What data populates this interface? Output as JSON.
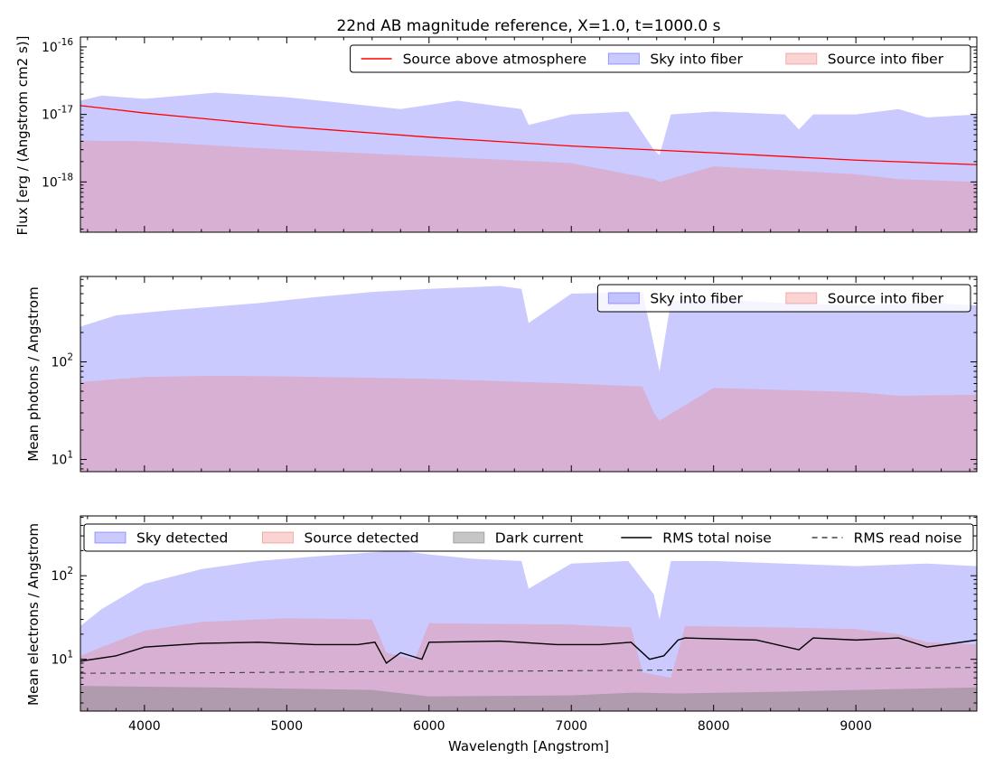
{
  "colors": {
    "sky": "#6666ff",
    "source": "#f08080",
    "dark": "#808080",
    "source_line": "#ff0000",
    "noise_total": "#000000",
    "noise_read": "#404040"
  },
  "chart_data": [
    {
      "type": "area",
      "panel": "top",
      "title": "22nd AB magnitude reference, X=1.0, t=1000.0 s",
      "xlabel": "",
      "ylabel": "Flux [erg / (Angstrom cm2 s)]",
      "xlim": [
        3550,
        9850
      ],
      "ylim": [
        1.8e-19,
        1.4e-16
      ],
      "yscale": "log",
      "yticks": [
        {
          "base": "10",
          "exp": "-18",
          "value": 1e-18
        },
        {
          "base": "10",
          "exp": "-17",
          "value": 1e-17
        },
        {
          "base": "10",
          "exp": "-16",
          "value": 1e-16
        }
      ],
      "legend_position": "top-right",
      "legend": [
        "Source above atmosphere",
        "Sky into fiber",
        "Source into fiber"
      ],
      "series": [
        {
          "name": "Source above atmosphere",
          "kind": "line",
          "x": [
            3550,
            4000,
            5000,
            6000,
            7000,
            8000,
            9000,
            9850
          ],
          "y": [
            1.35e-17,
            1.05e-17,
            6.6e-18,
            4.6e-18,
            3.4e-18,
            2.7e-18,
            2.1e-18,
            1.8e-18
          ]
        },
        {
          "name": "Sky into fiber",
          "kind": "fill",
          "x": [
            3550,
            3700,
            4000,
            4500,
            5000,
            5500,
            5800,
            6200,
            6650,
            6700,
            7000,
            7400,
            7580,
            7620,
            7700,
            8000,
            8500,
            8600,
            8700,
            9000,
            9300,
            9500,
            9850
          ],
          "y": [
            1.6e-17,
            1.9e-17,
            1.7e-17,
            2.1e-17,
            1.8e-17,
            1.4e-17,
            1.2e-17,
            1.6e-17,
            1.2e-17,
            7e-18,
            1e-17,
            1.1e-17,
            3e-18,
            2.5e-18,
            1e-17,
            1.1e-17,
            1e-17,
            6e-18,
            1e-17,
            1e-17,
            1.2e-17,
            9e-18,
            1e-17
          ]
        },
        {
          "name": "Source into fiber",
          "kind": "fill",
          "x": [
            3550,
            4000,
            5000,
            6000,
            7000,
            7580,
            7620,
            8000,
            9000,
            9300,
            9850
          ],
          "y": [
            4.1e-18,
            4e-18,
            3e-18,
            2.4e-18,
            1.9e-18,
            1.1e-18,
            1e-18,
            1.7e-18,
            1.3e-18,
            1.1e-18,
            1e-18
          ]
        }
      ]
    },
    {
      "type": "area",
      "panel": "middle",
      "xlabel": "",
      "ylabel": "Mean photons / Angstrom",
      "xlim": [
        3550,
        9850
      ],
      "ylim": [
        7.5,
        750
      ],
      "yscale": "log",
      "yticks": [
        {
          "base": "10",
          "exp": "1",
          "value": 10
        },
        {
          "base": "10",
          "exp": "2",
          "value": 100
        }
      ],
      "legend_position": "top-right",
      "legend": [
        "Sky into fiber",
        "Source into fiber"
      ],
      "series": [
        {
          "name": "Sky into fiber",
          "kind": "fill",
          "x": [
            3550,
            3800,
            4200,
            4800,
            5200,
            5600,
            6000,
            6500,
            6650,
            6700,
            7000,
            7500,
            7580,
            7620,
            7700,
            8000,
            8500,
            9000,
            9500,
            9850
          ],
          "y": [
            230,
            300,
            340,
            400,
            460,
            520,
            560,
            600,
            560,
            250,
            500,
            520,
            150,
            80,
            420,
            440,
            400,
            380,
            400,
            380
          ]
        },
        {
          "name": "Source into fiber",
          "kind": "fill",
          "x": [
            3550,
            4000,
            4500,
            5000,
            6000,
            7000,
            7500,
            7580,
            7620,
            8000,
            9000,
            9300,
            9850
          ],
          "y": [
            62,
            70,
            72,
            71,
            67,
            60,
            56,
            30,
            25,
            54,
            49,
            45,
            46
          ]
        }
      ]
    },
    {
      "type": "area",
      "panel": "bottom",
      "xlabel": "Wavelength [Angstrom]",
      "ylabel": "Mean electrons / Angstrom",
      "xlim": [
        3550,
        9850
      ],
      "ylim": [
        2.4,
        520
      ],
      "yscale": "log",
      "xticks": [
        "4000",
        "5000",
        "6000",
        "7000",
        "8000",
        "9000"
      ],
      "yticks": [
        {
          "base": "10",
          "exp": "1",
          "value": 10
        },
        {
          "base": "10",
          "exp": "2",
          "value": 100
        }
      ],
      "legend_position": "top",
      "legend": [
        "Sky detected",
        "Source detected",
        "Dark current",
        "RMS total noise",
        "RMS read noise"
      ],
      "series": [
        {
          "name": "Sky detected",
          "kind": "fill",
          "x": [
            3550,
            3700,
            4000,
            4400,
            4800,
            5200,
            5600,
            5800,
            6000,
            6300,
            6650,
            6700,
            7000,
            7400,
            7580,
            7620,
            7700,
            8000,
            8500,
            9000,
            9500,
            9850
          ],
          "y": [
            25,
            40,
            80,
            120,
            150,
            170,
            190,
            200,
            180,
            160,
            150,
            70,
            140,
            150,
            60,
            30,
            150,
            150,
            140,
            130,
            140,
            130
          ]
        },
        {
          "name": "Source detected",
          "kind": "fill",
          "x": [
            3550,
            3700,
            4000,
            4400,
            5000,
            5600,
            5700,
            5900,
            6000,
            7000,
            7420,
            7500,
            7700,
            7800,
            8500,
            9000,
            9300,
            9500,
            9850
          ],
          "y": [
            11,
            14,
            22,
            28,
            31,
            30,
            12,
            10,
            27,
            26,
            24,
            7,
            6,
            25,
            24,
            23,
            20,
            16,
            15
          ]
        },
        {
          "name": "Dark current",
          "kind": "fill",
          "x": [
            3550,
            4500,
            5600,
            6000,
            7000,
            7450,
            7750,
            8500,
            9000,
            9850
          ],
          "y": [
            4.8,
            4.6,
            4.3,
            3.6,
            3.7,
            4.0,
            3.9,
            4.1,
            4.3,
            4.6
          ]
        },
        {
          "name": "RMS total noise",
          "kind": "line",
          "x": [
            3550,
            3800,
            4000,
            4400,
            4800,
            5200,
            5500,
            5620,
            5700,
            5800,
            5950,
            6000,
            6500,
            6900,
            7200,
            7420,
            7550,
            7650,
            7750,
            7800,
            8300,
            8600,
            8700,
            9000,
            9300,
            9500,
            9850
          ],
          "y": [
            9.5,
            11,
            14,
            15.5,
            16,
            15,
            15,
            16,
            9,
            12,
            10,
            16,
            16.5,
            15,
            15,
            16,
            10,
            11,
            17,
            18,
            17,
            13,
            18,
            17,
            18,
            14,
            17
          ]
        },
        {
          "name": "RMS read noise",
          "kind": "dashed",
          "x": [
            3550,
            4500,
            5500,
            6500,
            7500,
            8500,
            9850
          ],
          "y": [
            6.8,
            6.9,
            7.1,
            7.2,
            7.4,
            7.6,
            8.0
          ]
        }
      ]
    }
  ]
}
